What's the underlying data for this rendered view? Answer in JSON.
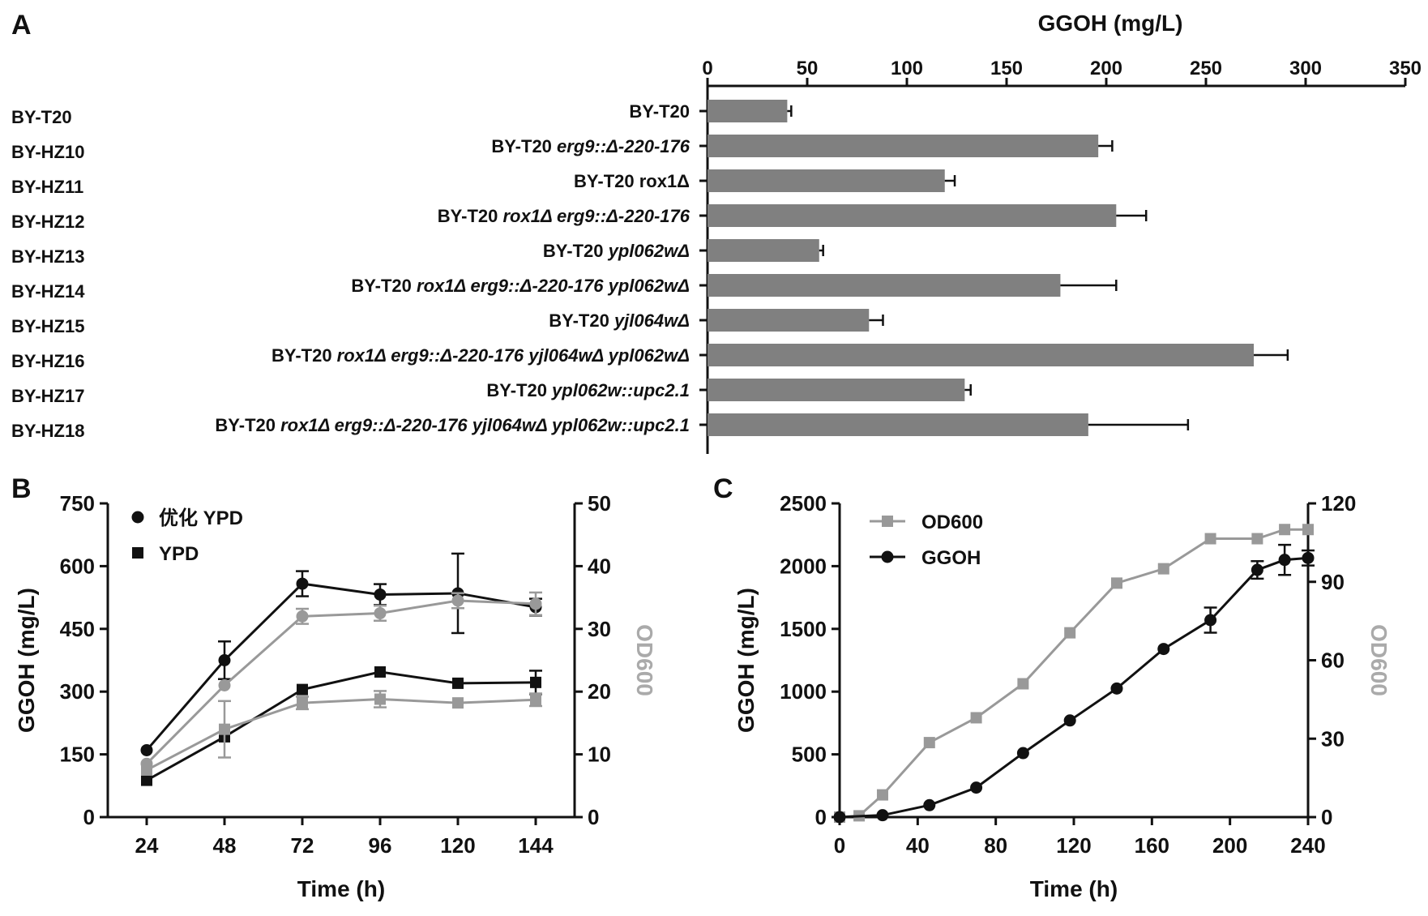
{
  "panels": {
    "a": "A",
    "b": "B",
    "c": "C"
  },
  "colors": {
    "black": "#111111",
    "gray": "#999999",
    "bar": "#808080",
    "label_gray": "#aaaaaa"
  },
  "chart_data": [
    {
      "id": "A",
      "type": "bar",
      "orientation": "horizontal",
      "xlabel": "GGOH (mg/L)",
      "xlim": [
        0,
        350
      ],
      "xticks": [
        0,
        50,
        100,
        150,
        200,
        250,
        300,
        350
      ],
      "categories": [
        "BY-T20",
        "BY-HZ10",
        "BY-HZ11",
        "BY-HZ12",
        "BY-HZ13",
        "BY-HZ14",
        "BY-HZ15",
        "BY-HZ16",
        "BY-HZ17",
        "BY-HZ18"
      ],
      "genotypes": [
        [
          {
            "t": "BY-T20",
            "i": false
          }
        ],
        [
          {
            "t": "BY-T20 ",
            "i": false
          },
          {
            "t": "erg9::Δ-220-176",
            "i": true
          }
        ],
        [
          {
            "t": "BY-T20 rox1Δ",
            "i": false
          }
        ],
        [
          {
            "t": "BY-T20 ",
            "i": false
          },
          {
            "t": "rox1Δ erg9::Δ-220-176",
            "i": true
          }
        ],
        [
          {
            "t": "BY-T20 ",
            "i": false
          },
          {
            "t": "ypl062wΔ",
            "i": true
          }
        ],
        [
          {
            "t": "BY-T20 ",
            "i": false
          },
          {
            "t": "rox1Δ erg9::Δ-220-176 ypl062wΔ",
            "i": true
          }
        ],
        [
          {
            "t": "BY-T20 ",
            "i": false
          },
          {
            "t": "yjl064wΔ",
            "i": true
          }
        ],
        [
          {
            "t": "BY-T20 ",
            "i": false
          },
          {
            "t": "rox1Δ erg9::Δ-220-176 yjl064wΔ ypl062wΔ",
            "i": true
          }
        ],
        [
          {
            "t": "BY-T20 ",
            "i": false
          },
          {
            "t": "ypl062w::upc2.1",
            "i": true
          }
        ],
        [
          {
            "t": "BY-T20 ",
            "i": false
          },
          {
            "t": "rox1Δ erg9::Δ-220-176 yjl064wΔ ypl062w::upc2.1",
            "i": true
          }
        ]
      ],
      "values": [
        40,
        196,
        119,
        205,
        56,
        177,
        81,
        274,
        129,
        191
      ],
      "errors": [
        2,
        7,
        5,
        15,
        2,
        28,
        7,
        17,
        3,
        50
      ]
    },
    {
      "id": "B",
      "type": "line",
      "xlabel": "Time (h)",
      "ylabel": "GGOH (mg/L)",
      "y2label": "OD600",
      "xlim": [
        12,
        156
      ],
      "ylim": [
        0,
        750
      ],
      "y2lim": [
        0,
        50
      ],
      "xticks": [
        24,
        48,
        72,
        96,
        120,
        144
      ],
      "yticks": [
        0,
        150,
        300,
        450,
        600,
        750
      ],
      "y2ticks": [
        0,
        10,
        20,
        30,
        40,
        50
      ],
      "legend": [
        {
          "name": "优化 YPD",
          "marker": "circle"
        },
        {
          "name": "YPD",
          "marker": "square"
        }
      ],
      "series": [
        {
          "name": "优化 YPD",
          "axis": "left",
          "marker": "circle",
          "color": "#111111",
          "x": [
            24,
            48,
            72,
            96,
            120,
            144
          ],
          "values": [
            160,
            375,
            558,
            532,
            535,
            502
          ],
          "errors": [
            0,
            45,
            30,
            25,
            95,
            20
          ]
        },
        {
          "name": "YPD",
          "axis": "left",
          "marker": "square",
          "color": "#111111",
          "x": [
            24,
            48,
            72,
            96,
            120,
            144
          ],
          "values": [
            88,
            192,
            305,
            347,
            320,
            322
          ],
          "errors": [
            0,
            0,
            0,
            0,
            0,
            28
          ]
        },
        {
          "axis": "right",
          "marker": "circle",
          "color": "#999999",
          "x": [
            24,
            48,
            72,
            96,
            120,
            144
          ],
          "values": [
            8.5,
            21,
            32,
            32.5,
            34.5,
            34
          ],
          "errors": [
            0,
            0,
            1.2,
            1.2,
            1.2,
            1.8
          ]
        },
        {
          "axis": "right",
          "marker": "square",
          "color": "#999999",
          "x": [
            24,
            48,
            72,
            96,
            120,
            144
          ],
          "values": [
            7.5,
            14,
            18.2,
            18.8,
            18.2,
            18.7
          ],
          "errors": [
            0,
            4.5,
            1,
            1.3,
            0,
            1
          ]
        }
      ]
    },
    {
      "id": "C",
      "type": "line",
      "xlabel": "Time (h)",
      "ylabel": "GGOH (mg/L)",
      "y2label": "OD600",
      "xlim": [
        0,
        240
      ],
      "ylim": [
        0,
        2500
      ],
      "y2lim": [
        0,
        120
      ],
      "xticks": [
        0,
        40,
        80,
        120,
        160,
        200,
        240
      ],
      "yticks": [
        0,
        500,
        1000,
        1500,
        2000,
        2500
      ],
      "y2ticks": [
        0,
        30,
        60,
        90,
        120
      ],
      "legend": [
        {
          "name": "OD600",
          "marker": "square",
          "color": "#999999"
        },
        {
          "name": "GGOH",
          "marker": "circle",
          "color": "#111111"
        }
      ],
      "series": [
        {
          "name": "OD600",
          "axis": "right",
          "marker": "square",
          "color": "#999999",
          "x": [
            0,
            10,
            22,
            46,
            70,
            94,
            118,
            142,
            166,
            190,
            214,
            228,
            240
          ],
          "values": [
            0,
            0.5,
            8.5,
            28.5,
            38,
            51,
            70.5,
            89.5,
            95,
            106.5,
            106.5,
            110,
            110
          ],
          "errors": []
        },
        {
          "name": "GGOH",
          "axis": "left",
          "marker": "circle",
          "color": "#111111",
          "x": [
            0,
            22,
            46,
            70,
            94,
            118,
            142,
            166,
            190,
            214,
            228,
            240
          ],
          "values": [
            0,
            15,
            95,
            235,
            510,
            770,
            1025,
            1340,
            1570,
            1970,
            2050,
            2065
          ],
          "errors": [
            0,
            0,
            0,
            0,
            0,
            0,
            0,
            0,
            100,
            70,
            120,
            60
          ]
        }
      ]
    }
  ]
}
